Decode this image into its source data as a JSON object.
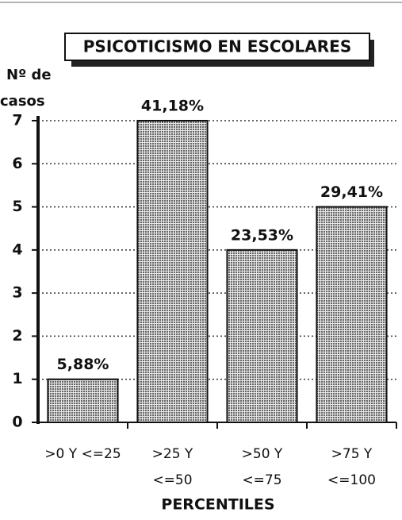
{
  "chart_data": {
    "type": "bar",
    "title": "PSICOTICISMO EN ESCOLARES",
    "y_label": [
      "Nº de",
      "casos"
    ],
    "x_label": "PERCENTILES",
    "categories": [
      [
        ">0 Y <=25"
      ],
      [
        ">25 Y",
        "<=50"
      ],
      [
        ">50 Y",
        "<=75"
      ],
      [
        ">75 Y",
        "<=100"
      ]
    ],
    "values": [
      1,
      7,
      4,
      5
    ],
    "value_labels": [
      "5,88%",
      "41,18%",
      "23,53%",
      "29,41%"
    ],
    "color": "#9a9a9a",
    "ylim": [
      0,
      7
    ],
    "yticks": [
      0,
      1,
      2,
      3,
      4,
      5,
      6,
      7
    ],
    "grid": true
  }
}
